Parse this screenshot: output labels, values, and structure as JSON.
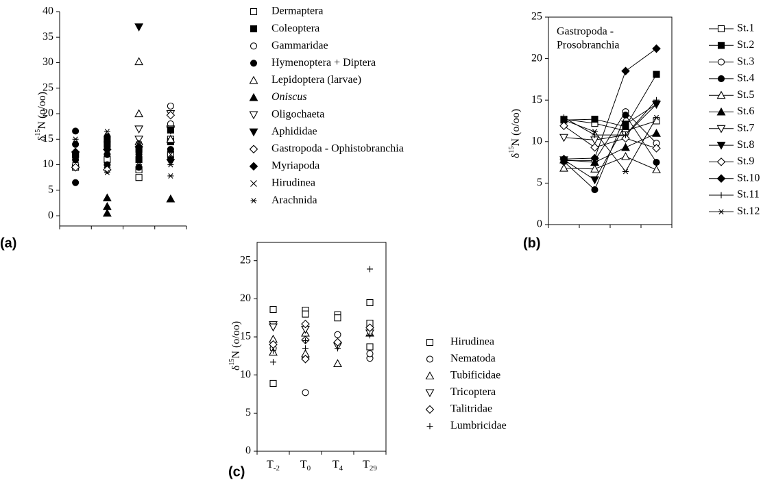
{
  "chart_data": [
    {
      "type": "scatter",
      "panel_label": "(a)",
      "ylabel_parts": [
        "δ",
        "15",
        "N (o/oo)"
      ],
      "xlim": [
        0.5,
        4.5
      ],
      "ylim": [
        -2,
        40
      ],
      "yticks": [
        0,
        5,
        10,
        15,
        20,
        25,
        30,
        35,
        40
      ],
      "series": [
        {
          "name": "Dermaptera",
          "marker": "square",
          "filled": false,
          "color": "#000000",
          "x": [
            1,
            1,
            2,
            3,
            3,
            4,
            4
          ],
          "values": [
            9.5,
            12,
            11,
            7.5,
            9,
            12,
            15
          ]
        },
        {
          "name": "Coleoptera",
          "marker": "square",
          "filled": true,
          "color": "#000000",
          "x": [
            1,
            2,
            2,
            3,
            3,
            4,
            4
          ],
          "values": [
            12,
            14,
            15,
            11,
            13,
            14.5,
            16.8
          ]
        },
        {
          "name": "Gammaridae",
          "marker": "circle",
          "filled": false,
          "color": "#000000",
          "x": [
            1,
            2,
            3,
            4,
            4
          ],
          "values": [
            10,
            13,
            14,
            21.5,
            18
          ]
        },
        {
          "name": "Hymenoptera + Diptera",
          "marker": "circle",
          "filled": true,
          "color": "#000000",
          "x": [
            1,
            1,
            1,
            1,
            2,
            2,
            2,
            3,
            3,
            4,
            4
          ],
          "values": [
            6.5,
            16.6,
            14,
            11,
            15.5,
            12,
            10,
            9.5,
            12,
            11,
            13
          ]
        },
        {
          "name": "Lepidoptera (larvae)",
          "marker": "triangle",
          "filled": false,
          "color": "#000000",
          "x": [
            3,
            3,
            4
          ],
          "values": [
            30.2,
            20,
            15
          ]
        },
        {
          "name": "Oniscus",
          "italic": true,
          "marker": "triangle",
          "filled": true,
          "color": "#000000",
          "x": [
            2,
            2,
            2,
            4
          ],
          "values": [
            3.5,
            1.8,
            0.5,
            3.3
          ]
        },
        {
          "name": "Oligochaeta",
          "marker": "triangle-down",
          "filled": false,
          "color": "#000000",
          "x": [
            3,
            3,
            4,
            4
          ],
          "values": [
            17,
            15,
            20,
            17
          ]
        },
        {
          "name": "Aphididae",
          "marker": "triangle-down",
          "filled": true,
          "color": "#000000",
          "x": [
            3,
            4
          ],
          "values": [
            37,
            16.8
          ]
        },
        {
          "name": "Gastropoda - Ophistobranchia",
          "marker": "diamond",
          "filled": false,
          "color": "#000000",
          "x": [
            1,
            2,
            3,
            4
          ],
          "values": [
            9.5,
            9,
            14,
            19.7
          ]
        },
        {
          "name": "Myriapoda",
          "marker": "diamond",
          "filled": true,
          "color": "#000000",
          "x": [
            1,
            2,
            3,
            4
          ],
          "values": [
            12.5,
            13,
            13.5,
            11
          ]
        },
        {
          "name": "Hirudinea",
          "marker": "x",
          "filled": false,
          "color": "#000000",
          "x": [
            1,
            2,
            3,
            4
          ],
          "values": [
            11,
            10,
            12,
            12
          ]
        },
        {
          "name": "Arachnida",
          "marker": "star",
          "filled": false,
          "color": "#000000",
          "x": [
            1,
            2,
            2,
            3,
            3,
            4,
            4
          ],
          "values": [
            15,
            16.5,
            8.5,
            14.5,
            10,
            7.8,
            10
          ]
        }
      ]
    },
    {
      "type": "line",
      "panel_label": "(b)",
      "ylabel_parts": [
        "δ",
        "15",
        "N (o/oo)"
      ],
      "title_lines": [
        "Gastropoda -",
        "Prosobranchia"
      ],
      "frame": true,
      "categories": [
        null,
        null,
        null,
        null
      ],
      "ylim": [
        0,
        25
      ],
      "yticks": [
        0,
        5,
        10,
        15,
        20,
        25
      ],
      "series": [
        {
          "name": "St.1",
          "marker": "square",
          "filled": false,
          "color": "#000000",
          "values": [
            12.7,
            12.2,
            11.3,
            12.5
          ]
        },
        {
          "name": "St.2",
          "marker": "square",
          "filled": true,
          "color": "#000000",
          "values": [
            12.6,
            12.7,
            11.8,
            18.1
          ]
        },
        {
          "name": "St.3",
          "marker": "circle",
          "filled": false,
          "color": "#000000",
          "values": [
            7.7,
            7.7,
            13.6,
            9.8
          ]
        },
        {
          "name": "St.4",
          "marker": "circle",
          "filled": true,
          "color": "#000000",
          "values": [
            7.6,
            4.2,
            13.2,
            7.5
          ]
        },
        {
          "name": "St.5",
          "marker": "triangle",
          "filled": false,
          "color": "#000000",
          "values": [
            6.8,
            6.7,
            8.2,
            6.6
          ]
        },
        {
          "name": "St.6",
          "marker": "triangle",
          "filled": true,
          "color": "#000000",
          "values": [
            7.8,
            7.5,
            9.3,
            11
          ]
        },
        {
          "name": "St.7",
          "marker": "triangle-down",
          "filled": false,
          "color": "#000000",
          "values": [
            10.5,
            10.2,
            10.8,
            14.5
          ]
        },
        {
          "name": "St.8",
          "marker": "triangle-down",
          "filled": true,
          "color": "#000000",
          "values": [
            7.8,
            5.4,
            12.1,
            14.5
          ]
        },
        {
          "name": "St.9",
          "marker": "diamond",
          "filled": false,
          "color": "#000000",
          "values": [
            11.9,
            9.3,
            10.4,
            9.2
          ]
        },
        {
          "name": "St.10",
          "marker": "diamond",
          "filled": true,
          "color": "#000000",
          "values": [
            7.9,
            8,
            18.5,
            21.2
          ]
        },
        {
          "name": "St.11",
          "marker": "plus",
          "filled": false,
          "color": "#000000",
          "values": [
            12.9,
            10.8,
            10.8,
            15
          ]
        },
        {
          "name": "St.12",
          "marker": "star",
          "filled": false,
          "color": "#000000",
          "values": [
            12.6,
            11.2,
            6.4,
            12.9
          ]
        }
      ]
    },
    {
      "type": "scatter",
      "panel_label": "(c)",
      "ylabel_parts": [
        "δ",
        "15",
        "N (o/oo)"
      ],
      "frame": true,
      "categories": [
        "T-2",
        "T0",
        "T4",
        "T29"
      ],
      "ylim": [
        0,
        27.4
      ],
      "yticks": [
        0,
        5,
        10,
        15,
        20,
        25
      ],
      "series": [
        {
          "name": "Hirudinea",
          "marker": "square",
          "filled": false,
          "color": "#000000",
          "x": [
            "T-2",
            "T-2",
            "T0",
            "T0",
            "T4",
            "T4",
            "T29",
            "T29",
            "T29"
          ],
          "values": [
            18.6,
            8.9,
            18.5,
            18,
            17.9,
            17.5,
            19.5,
            16.8,
            13.7
          ]
        },
        {
          "name": "Nematoda",
          "marker": "circle",
          "filled": false,
          "color": "#000000",
          "x": [
            "T-2",
            "T0",
            "T0",
            "T4",
            "T29",
            "T29"
          ],
          "values": [
            13.5,
            7.7,
            12.3,
            15.3,
            12.2,
            12.8
          ]
        },
        {
          "name": "Tubificidae",
          "marker": "triangle",
          "filled": false,
          "color": "#000000",
          "x": [
            "T-2",
            "T-2",
            "T0",
            "T0",
            "T4",
            "T29"
          ],
          "values": [
            14.7,
            13,
            15.5,
            12.8,
            11.5,
            15.5
          ]
        },
        {
          "name": "Tricoptera",
          "marker": "triangle-down",
          "filled": false,
          "color": "#000000",
          "x": [
            "T-2",
            "T-2",
            "T0",
            "T4",
            "T29"
          ],
          "values": [
            16.6,
            16.3,
            16,
            13.8,
            15.5
          ]
        },
        {
          "name": "Talitridae",
          "marker": "diamond",
          "filled": false,
          "color": "#000000",
          "x": [
            "T-2",
            "T0",
            "T0",
            "T0",
            "T4",
            "T29"
          ],
          "values": [
            14,
            16.7,
            12.1,
            14.6,
            14.3,
            16.2
          ]
        },
        {
          "name": "Lumbricidae",
          "marker": "plus",
          "filled": false,
          "color": "#000000",
          "x": [
            "T-2",
            "T-2",
            "T0",
            "T0",
            "T4",
            "T29",
            "T29"
          ],
          "values": [
            11.7,
            13.2,
            13.5,
            14.5,
            13.5,
            23.9,
            15.2
          ]
        }
      ]
    }
  ]
}
